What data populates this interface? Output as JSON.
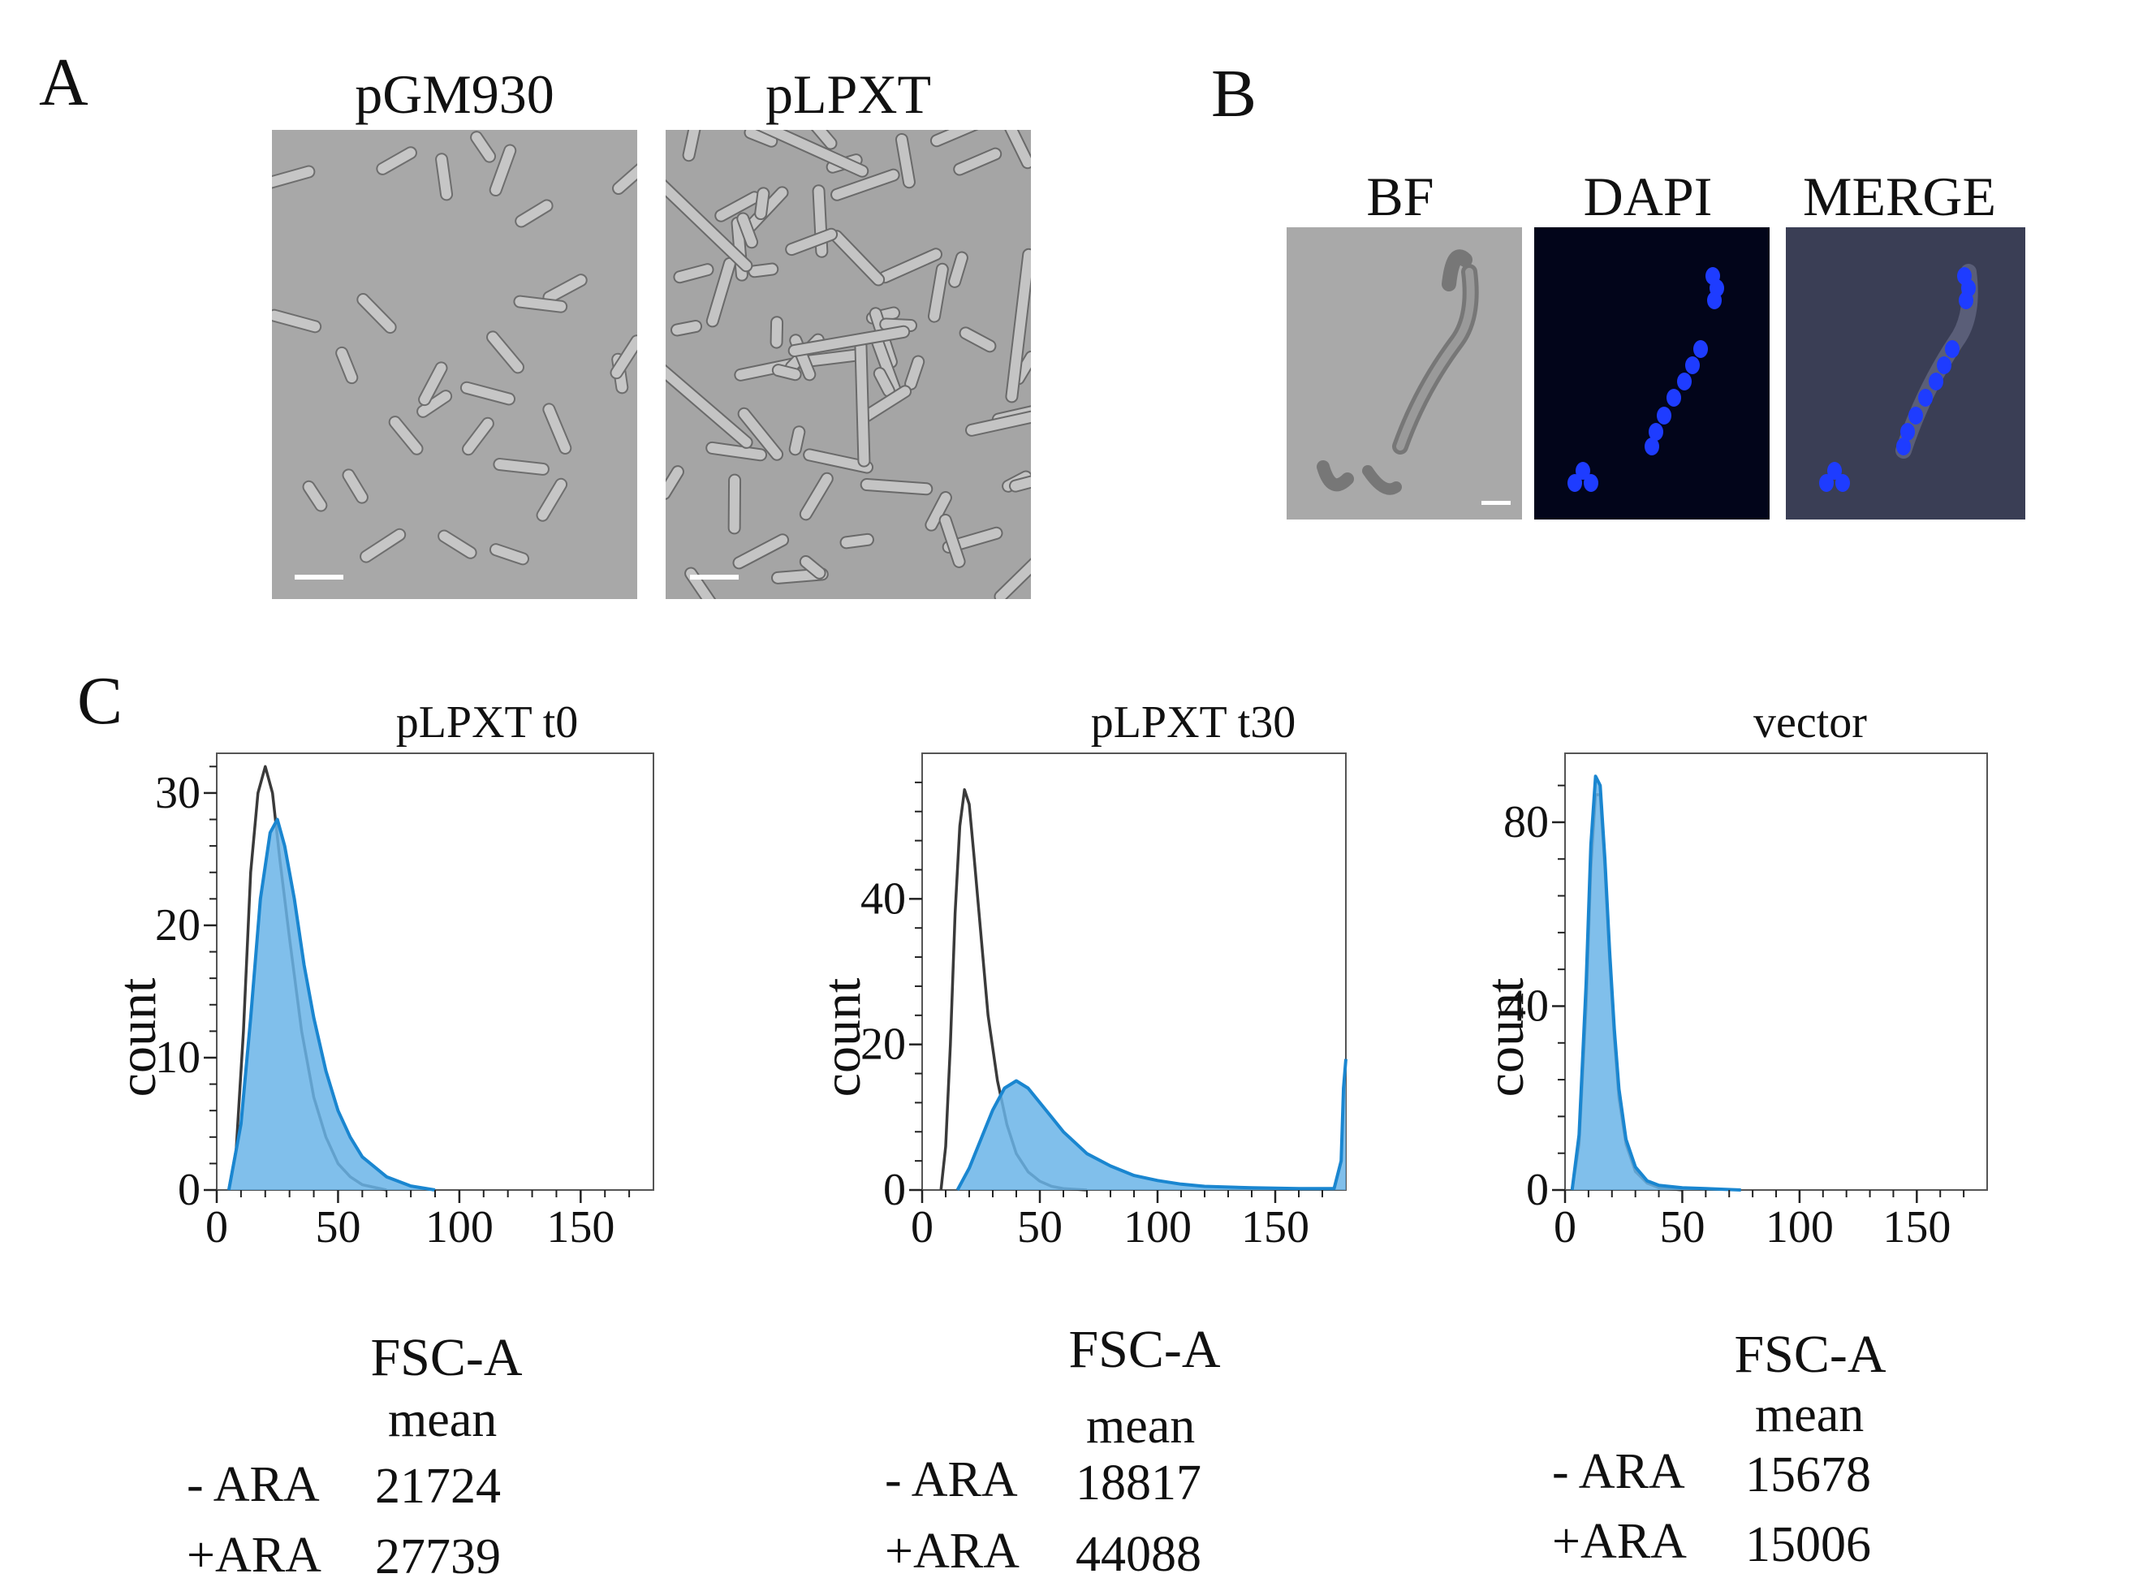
{
  "panels": {
    "a": {
      "letter": "A",
      "images": [
        {
          "title": "pGM930",
          "description": "rod-shaped bacteria, brightfield"
        },
        {
          "title": "pLPXT",
          "description": "elongated and filamentous bacteria, brightfield"
        }
      ]
    },
    "b": {
      "letter": "B",
      "images": [
        {
          "title": "BF"
        },
        {
          "title": "DAPI"
        },
        {
          "title": "MERGE"
        }
      ]
    },
    "c": {
      "letter": "C",
      "stats_header": "mean",
      "row_labels": [
        "- ARA",
        "+ARA"
      ],
      "xlabel": "FSC-A",
      "ylabel": "count"
    }
  },
  "colors": {
    "minus_ara_line": "#3a3a3a",
    "plus_ara_fill": "#6ab4e8",
    "plus_ara_line": "#1a86d0",
    "dapi": "#1e3cff"
  },
  "chart_data": [
    {
      "type": "area",
      "title": "pLPXT t0",
      "xlabel": "FSC-A",
      "ylabel": "count",
      "xlim": [
        0,
        180
      ],
      "ylim": [
        0,
        33
      ],
      "xticks": [
        0,
        50,
        100,
        150
      ],
      "yticks": [
        0,
        10,
        20,
        30
      ],
      "series": [
        {
          "name": "- ARA",
          "style": "line",
          "x": [
            5,
            8,
            11,
            14,
            17,
            20,
            23,
            26,
            30,
            35,
            40,
            45,
            50,
            55,
            60,
            70
          ],
          "y": [
            0,
            3,
            12,
            24,
            30,
            32,
            30,
            25,
            19,
            12,
            7,
            4,
            2,
            1,
            0.4,
            0
          ]
        },
        {
          "name": "+ARA",
          "style": "filled",
          "x": [
            5,
            10,
            14,
            18,
            22,
            25,
            28,
            32,
            36,
            40,
            45,
            50,
            55,
            60,
            70,
            80,
            90
          ],
          "y": [
            0,
            5,
            13,
            22,
            27,
            28,
            26,
            22,
            17,
            13,
            9,
            6,
            4,
            2.5,
            1,
            0.3,
            0
          ]
        }
      ],
      "mean": {
        "- ARA": 21724,
        "+ARA": 27739
      }
    },
    {
      "type": "area",
      "title": "pLPXT t30",
      "xlabel": "FSC-A",
      "ylabel": "count",
      "xlim": [
        0,
        180
      ],
      "ylim": [
        0,
        60
      ],
      "xticks": [
        0,
        50,
        100,
        150
      ],
      "yticks": [
        0,
        20,
        40
      ],
      "series": [
        {
          "name": "- ARA",
          "style": "line",
          "x": [
            8,
            10,
            12,
            14,
            16,
            18,
            20,
            22,
            25,
            28,
            32,
            36,
            40,
            45,
            50,
            55,
            60,
            70
          ],
          "y": [
            0,
            6,
            20,
            38,
            50,
            55,
            53,
            46,
            35,
            24,
            15,
            9,
            5,
            2.5,
            1.2,
            0.5,
            0.2,
            0
          ]
        },
        {
          "name": "+ARA",
          "style": "filled",
          "x": [
            15,
            20,
            25,
            30,
            35,
            40,
            45,
            50,
            55,
            60,
            70,
            80,
            90,
            100,
            110,
            120,
            140,
            160,
            175,
            178,
            179,
            180
          ],
          "y": [
            0,
            3,
            7,
            11,
            14,
            15,
            14,
            12,
            10,
            8,
            5,
            3.3,
            2,
            1.3,
            0.8,
            0.5,
            0.3,
            0.2,
            0.2,
            4,
            14,
            18
          ]
        }
      ],
      "mean": {
        "- ARA": 18817,
        "+ARA": 44088
      }
    },
    {
      "type": "area",
      "title": "vector",
      "xlabel": "FSC-A",
      "ylabel": "count",
      "xlim": [
        0,
        180
      ],
      "ylim": [
        0,
        95
      ],
      "xticks": [
        0,
        50,
        100,
        150
      ],
      "yticks": [
        0,
        40,
        80
      ],
      "series": [
        {
          "name": "- ARA",
          "style": "line",
          "x": [
            3,
            6,
            9,
            11,
            13,
            15,
            17,
            19,
            21,
            23,
            26,
            30,
            35,
            40,
            50
          ],
          "y": [
            0,
            10,
            40,
            70,
            86,
            86,
            70,
            50,
            33,
            20,
            10,
            4,
            1.5,
            0.5,
            0
          ]
        },
        {
          "name": "+ARA",
          "style": "filled",
          "x": [
            3,
            6,
            9,
            11,
            13,
            15,
            17,
            19,
            21,
            23,
            26,
            30,
            35,
            40,
            50,
            60,
            75
          ],
          "y": [
            0,
            12,
            45,
            75,
            90,
            88,
            72,
            52,
            35,
            22,
            11,
            5,
            2,
            1,
            0.5,
            0.3,
            0
          ]
        }
      ],
      "mean": {
        "- ARA": 15678,
        "+ARA": 15006
      }
    }
  ]
}
